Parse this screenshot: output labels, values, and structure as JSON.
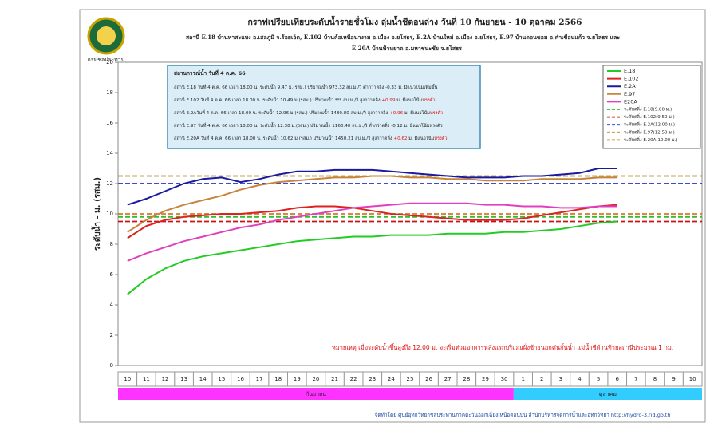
{
  "chart_data": {
    "type": "line",
    "title": "กราฟเปรียบเทียบระดับน้ำรายชั่วโมง ลุ่มน้ำชีตอนล่าง วันที่  10 กันยายน - 10 ตุลาคม  2566",
    "subtitle": [
      "สถานี E.18 บ้านท่าสะแบง อ.เสลภูมิ จ.ร้อยเอ็ด, E.102  บ้านค้อเหนือนางาม อ.เมือง จ.ยโสธร, E.2A บ้านใหม่ อ.เมือง จ.ยโสธร, E.97 บ้านดอนขอม อ.คำเขื่อนแก้ว จ.ยโสธร และ",
      "E.20A บ้านฟ้าหยาด อ.มหาชนะชัย จ.ยโสธร"
    ],
    "logo_text": "กรมชลประทาน",
    "y_label": "ระดับน้ำ  -  ม. (รสม.)",
    "ylim": [
      0,
      20
    ],
    "yticks": [
      0,
      2,
      4,
      6,
      8,
      10,
      12,
      14,
      16,
      18,
      20
    ],
    "months": [
      {
        "name": "กันยายน",
        "color": "#ff33ff",
        "days": [
          "10",
          "11",
          "12",
          "13",
          "14",
          "15",
          "16",
          "17",
          "18",
          "19",
          "20",
          "21",
          "22",
          "23",
          "24",
          "25",
          "26",
          "27",
          "28",
          "29",
          "30"
        ]
      },
      {
        "name": "ตุลาคม",
        "color": "#33ccff",
        "days": [
          "1",
          "2",
          "3",
          "4",
          "5",
          "6",
          "7",
          "8",
          "9",
          "10"
        ]
      }
    ],
    "series": [
      {
        "name": "E.18",
        "color": "#22cc22",
        "values": [
          4.7,
          5.7,
          6.4,
          6.9,
          7.2,
          7.4,
          7.6,
          7.8,
          8.0,
          8.2,
          8.3,
          8.4,
          8.5,
          8.5,
          8.6,
          8.6,
          8.6,
          8.7,
          8.7,
          8.7,
          8.8,
          8.8,
          8.9,
          9.0,
          9.2,
          9.4,
          9.5,
          null,
          null,
          null,
          null
        ]
      },
      {
        "name": "E.102",
        "color": "#dd2222",
        "values": [
          8.4,
          9.2,
          9.6,
          9.8,
          9.9,
          10.0,
          10.0,
          10.1,
          10.2,
          10.4,
          10.5,
          10.5,
          10.4,
          10.2,
          10.0,
          9.9,
          9.8,
          9.7,
          9.6,
          9.6,
          9.6,
          9.7,
          9.9,
          10.1,
          10.3,
          10.5,
          10.6,
          null,
          null,
          null,
          null
        ]
      },
      {
        "name": "E.2A",
        "color": "#1a1aa0",
        "values": [
          10.6,
          11.0,
          11.5,
          12.0,
          12.3,
          12.4,
          12.1,
          12.3,
          12.6,
          12.8,
          12.8,
          12.9,
          12.9,
          12.9,
          12.8,
          12.7,
          12.6,
          12.5,
          12.4,
          12.4,
          12.4,
          12.5,
          12.5,
          12.6,
          12.7,
          13.0,
          13.0,
          null,
          null,
          null,
          null
        ]
      },
      {
        "name": "E.97",
        "color": "#c8843c",
        "values": [
          8.8,
          9.6,
          10.2,
          10.6,
          10.9,
          11.2,
          11.6,
          11.9,
          12.1,
          12.2,
          12.3,
          12.4,
          12.4,
          12.5,
          12.5,
          12.4,
          12.4,
          12.3,
          12.3,
          12.2,
          12.2,
          12.2,
          12.3,
          12.3,
          12.3,
          12.4,
          12.4,
          null,
          null,
          null,
          null
        ]
      },
      {
        "name": "E20A",
        "color": "#e040c0",
        "values": [
          6.9,
          7.4,
          7.8,
          8.2,
          8.5,
          8.8,
          9.1,
          9.3,
          9.6,
          9.8,
          10.0,
          10.2,
          10.4,
          10.5,
          10.6,
          10.7,
          10.7,
          10.7,
          10.7,
          10.6,
          10.6,
          10.5,
          10.5,
          10.4,
          10.4,
          10.5,
          10.5,
          null,
          null,
          null,
          null
        ]
      }
    ],
    "thresholds": [
      {
        "name": "ระดับตลิ่ง E.18(9.80 ม.)",
        "color": "#33bb33",
        "value": 9.8
      },
      {
        "name": "ระดับตลิ่ง E.102(9.50 ม.)",
        "color": "#cc1111",
        "value": 9.5
      },
      {
        "name": "ระดับตลิ่ง E.2A(12.00 ม.)",
        "color": "#2233cc",
        "value": 12.0
      },
      {
        "name": "ระดับตลิ่ง E.97(12.50 ม.)",
        "color": "#b08a20",
        "value": 12.5
      },
      {
        "name": "ระดับตลิ่ง E.20A(10.00 ม.)",
        "color": "#d07a2a",
        "value": 10.0
      }
    ],
    "info_box": {
      "title": "สถานการณ์น้ำ วันที่    4 ต.ค. 66",
      "lines": [
        {
          "text": "สถานี E.18 วันที่ 4 ต.ค. 66  เวลา 18.00 น. ระดับน้ำ 9.47 ม.(รสม.) ปริมาณน้ำ 973.32 ลบ.ม./วิ ต่ำกว่าตลิ่ง",
          "diff": " -0.33",
          "mid": " ม. มีแนวโน้ม",
          "trend": "เพิ่มขึ้น",
          "alert": false
        },
        {
          "text": "สถานี E.102 วันที่ 4 ต.ค. 66  เวลา 18.00 น. ระดับน้ำ 10.49 ม.(รสม.) ปริมาณน้ำ  ***  ลบ.ม./วิ สูงกว่าตลิ่ง",
          "diff": " +0.99",
          "mid": " ม. มีแนวโน้ม",
          "trend": "ทรงตัว",
          "alert": true
        },
        {
          "text": "สถานี E.2Aวันที่ 4 ต.ค. 66  เวลา 18.00 น. ระดับน้ำ 12.96 ม.(รสม.) ปริมาณน้ำ 1480.80 ลบ.ม./วิ สูงกว่าตลิ่ง",
          "diff": " +0.96",
          "mid": " ม. มีแนวโน้ม",
          "trend": "ทรงตัว",
          "alert": true
        },
        {
          "text": "สถานี E.97 วันที่ 4 ต.ค. 66  เวลา 18.00 น. ระดับน้ำ 12.38 ม.(รสม.) ปริมาณน้ำ 1166.40 ลบ.ม./วิ ต่ำกว่าตลิ่ง",
          "diff": " -0.12",
          "mid": " ม. มีแนวโน้ม",
          "trend": "ทรงตัว",
          "alert": false
        },
        {
          "text": "สถานี E.20A วันที่ 4 ต.ค. 66  เวลา 18.00 น. ระดับน้ำ 10.62 ม.(รสม.) ปริมาณน้ำ 1450.21 ลบ.ม./วิ สูงกว่าตลิ่ง",
          "diff": " +0.62",
          "mid": " ม. มีแนวโน้ม",
          "trend": "ทรงตัว",
          "alert": true
        }
      ]
    },
    "annotation": "หมายเหตุ เมื่อระดับน้ำขึ้นสูงถึง 12.00 ม. จะเริ่มท่วมอาคารหลังแรกบริเวณฝั่งซ้ายนอกคันกั้นน้ำ แม่น้ำชีด้านท้ายสถานีประมาณ 1 กม.",
    "footer": "จัดทำโดย ศูนย์อุทกวิทยาชลประทานภาคตะวันออกเฉียงเหนือตอนบน   สำนักบริหารจัดการน้ำและอุทกวิทยา  http://hydro-3.rid.go.th"
  }
}
